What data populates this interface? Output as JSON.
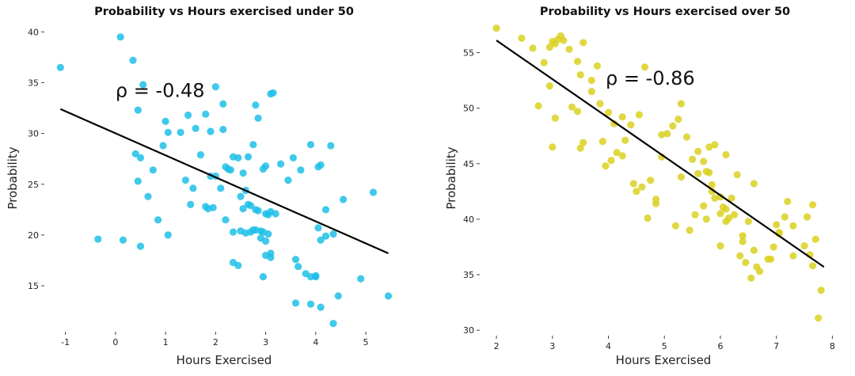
{
  "chart_data": [
    {
      "type": "scatter",
      "title": "Probability vs Hours exercised under 50",
      "xlabel": "Hours Exercised",
      "ylabel": "Probability",
      "xlim": [
        -1.2,
        5.6
      ],
      "ylim": [
        10.8,
        40.8
      ],
      "xticks": [
        -1,
        0,
        1,
        2,
        3,
        4,
        5
      ],
      "yticks": [
        15,
        20,
        25,
        30,
        35,
        40
      ],
      "grid": false,
      "legend": "none",
      "point_color": "#1ec0e6",
      "annotation": {
        "text": "ρ = -0.48",
        "x": 0.0,
        "y": 33.6
      },
      "trendline": {
        "x": [
          -1.1,
          5.45
        ],
        "y": [
          32.4,
          18.2
        ]
      },
      "series": [
        {
          "x": [
            -1.1,
            0.1,
            0.35,
            0.55,
            0.45,
            0.4,
            0.5,
            0.75,
            0.95,
            1.05,
            1.0,
            0.45,
            0.65,
            0.85,
            1.05,
            0.5,
            0.15,
            -0.35,
            1.3,
            1.45,
            1.6,
            1.8,
            1.9,
            2.0,
            2.15,
            2.0,
            1.55,
            1.7,
            1.85,
            1.95,
            2.15,
            2.25,
            2.35,
            2.45,
            2.55,
            2.65,
            2.75,
            2.8,
            2.85,
            2.95,
            3.0,
            3.1,
            3.15,
            3.3,
            3.45,
            3.55,
            3.7,
            3.9,
            4.05,
            4.1,
            4.3,
            1.4,
            1.5,
            1.8,
            1.9,
            2.1,
            2.2,
            2.35,
            2.5,
            2.55,
            2.6,
            2.65,
            2.7,
            2.75,
            2.8,
            2.85,
            2.9,
            2.95,
            3.0,
            3.05,
            3.1,
            3.2,
            2.2,
            2.3,
            2.5,
            2.6,
            2.7,
            2.8,
            2.9,
            3.0,
            3.05,
            3.1,
            2.35,
            2.45,
            2.95,
            3.1,
            3.6,
            3.65,
            3.8,
            3.9,
            4.0,
            4.05,
            4.1,
            4.2,
            3.0,
            3.6,
            3.9,
            4.0,
            4.1,
            4.35,
            4.45,
            4.55,
            4.9,
            5.15,
            5.45,
            4.2,
            4.35
          ],
          "y": [
            36.5,
            39.5,
            37.2,
            34.8,
            32.3,
            28.0,
            27.6,
            26.4,
            28.8,
            30.1,
            31.2,
            25.3,
            23.8,
            21.5,
            20.0,
            18.9,
            19.5,
            19.6,
            30.1,
            31.8,
            30.5,
            31.9,
            30.2,
            34.6,
            32.9,
            25.8,
            24.6,
            27.9,
            22.6,
            22.7,
            30.4,
            26.5,
            27.7,
            27.6,
            26.1,
            27.7,
            28.9,
            32.8,
            31.5,
            26.5,
            26.8,
            33.9,
            34.0,
            27.0,
            25.4,
            27.6,
            26.4,
            28.9,
            26.7,
            26.9,
            28.8,
            25.4,
            23.0,
            22.8,
            25.8,
            24.6,
            21.5,
            20.3,
            23.8,
            22.6,
            24.4,
            23.0,
            22.9,
            20.5,
            22.5,
            22.4,
            20.4,
            20.3,
            22.1,
            22.0,
            22.3,
            22.1,
            26.7,
            26.4,
            20.4,
            20.2,
            20.3,
            20.5,
            19.7,
            19.4,
            20.1,
            18.2,
            17.3,
            17.0,
            15.9,
            17.8,
            17.6,
            16.9,
            16.2,
            15.9,
            15.9,
            20.7,
            19.5,
            19.9,
            18.0,
            13.3,
            13.2,
            16.0,
            12.9,
            11.3,
            14.0,
            23.5,
            15.7,
            24.2,
            14.0,
            22.5,
            20.1
          ]
        }
      ]
    },
    {
      "type": "scatter",
      "title": "Probability vs Hours exercised over 50",
      "xlabel": "Hours Exercised",
      "ylabel": "Probability",
      "xlim": [
        1.9,
        8.15
      ],
      "ylim": [
        29.8,
        57.6
      ],
      "xticks": [
        2,
        3,
        4,
        5,
        6,
        7,
        8
      ],
      "yticks": [
        30,
        35,
        40,
        45,
        50,
        55
      ],
      "grid": false,
      "legend": "none",
      "point_color": "#dbd121",
      "annotation": {
        "text": "ρ = -0.86",
        "x": 3.95,
        "y": 52.1
      },
      "trendline": {
        "x": [
          2.0,
          7.85
        ],
        "y": [
          56.1,
          35.7
        ]
      },
      "series": [
        {
          "x": [
            2.0,
            2.45,
            2.65,
            2.85,
            2.95,
            3.0,
            3.05,
            3.1,
            3.15,
            3.2,
            3.3,
            3.45,
            3.5,
            3.55,
            3.7,
            3.8,
            2.75,
            2.95,
            3.05,
            3.35,
            3.45,
            3.7,
            3.85,
            4.0,
            4.1,
            4.25,
            4.3,
            4.4,
            4.55,
            4.65,
            3.0,
            3.5,
            3.55,
            3.9,
            3.95,
            4.05,
            4.15,
            4.25,
            4.45,
            4.6,
            4.75,
            4.85,
            4.95,
            5.05,
            5.15,
            5.25,
            5.3,
            5.4,
            5.5,
            5.6,
            5.7,
            5.75,
            5.8,
            5.85,
            5.9,
            6.0,
            6.05,
            6.15,
            6.2,
            6.25,
            4.5,
            4.7,
            4.85,
            4.95,
            5.2,
            5.3,
            5.45,
            5.6,
            5.75,
            5.85,
            6.0,
            6.1,
            6.3,
            6.4,
            6.5,
            6.6,
            6.7,
            6.9,
            7.0,
            7.05,
            7.15,
            6.0,
            6.35,
            6.45,
            6.55,
            6.65,
            6.85,
            6.95,
            7.05,
            7.2,
            7.3,
            7.5,
            7.6,
            7.65,
            7.7,
            7.75,
            7.8,
            6.1,
            6.4,
            6.6,
            7.3,
            7.55,
            7.65,
            5.8,
            5.9,
            6.1,
            5.55,
            5.7
          ],
          "y": [
            57.2,
            56.3,
            55.4,
            54.1,
            55.5,
            56.0,
            55.8,
            56.2,
            56.5,
            56.1,
            55.3,
            54.2,
            53.0,
            55.9,
            52.5,
            53.8,
            50.2,
            52.0,
            49.1,
            50.1,
            49.7,
            51.5,
            50.4,
            49.6,
            48.6,
            49.2,
            47.1,
            48.5,
            49.4,
            53.7,
            46.5,
            46.4,
            46.9,
            47.0,
            44.8,
            45.3,
            46.0,
            45.7,
            43.2,
            42.9,
            43.5,
            41.8,
            47.6,
            47.7,
            48.4,
            49.0,
            50.4,
            47.4,
            45.4,
            46.1,
            45.2,
            44.3,
            44.2,
            42.5,
            41.9,
            42.0,
            41.1,
            40.1,
            41.9,
            40.4,
            42.5,
            40.1,
            41.4,
            45.6,
            39.4,
            43.8,
            39.0,
            44.1,
            40.0,
            43.1,
            40.5,
            39.8,
            44.0,
            38.5,
            39.8,
            37.2,
            35.3,
            36.4,
            39.5,
            38.7,
            40.2,
            37.6,
            36.7,
            36.1,
            34.7,
            35.7,
            36.4,
            37.5,
            38.8,
            41.6,
            36.7,
            37.6,
            36.8,
            35.8,
            38.2,
            31.1,
            33.6,
            40.9,
            38.0,
            43.2,
            39.4,
            40.2,
            41.3,
            46.5,
            46.7,
            45.8,
            40.4,
            41.2
          ]
        }
      ]
    }
  ]
}
